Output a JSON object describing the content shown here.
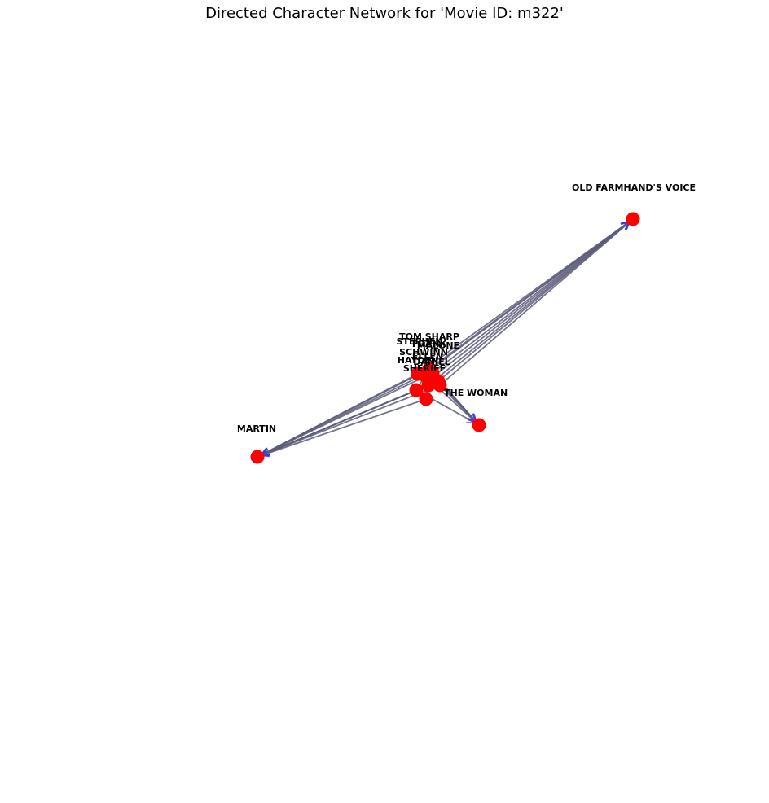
{
  "title": "Directed Character Network for 'Movie ID: m322'",
  "colors": {
    "node": "#ff0000",
    "edge": "#5a5a7a",
    "arrow": "#3a3ae0",
    "label": "#000000"
  },
  "nodes": [
    {
      "id": "old_farmhand",
      "label": "OLD FARMHAND'S VOICE"
    },
    {
      "id": "martin",
      "label": "MARTIN"
    },
    {
      "id": "the_woman",
      "label": "THE WOMAN"
    },
    {
      "id": "tom_sharp",
      "label": "TOM SHARP"
    },
    {
      "id": "stephen",
      "label": "STEPHEN"
    },
    {
      "id": "frank",
      "label": "FRANK"
    },
    {
      "id": "malone",
      "label": "MALONE"
    },
    {
      "id": "schwinn",
      "label": "SCHWINN"
    },
    {
      "id": "ellen",
      "label": "ELLEN"
    },
    {
      "id": "hayden",
      "label": "HAYDEN"
    },
    {
      "id": "daniel",
      "label": "DANIEL"
    },
    {
      "id": "sheriff",
      "label": "SHERIFF"
    }
  ],
  "edges": [
    {
      "source": "tom_sharp",
      "target": "old_farmhand"
    },
    {
      "source": "stephen",
      "target": "old_farmhand"
    },
    {
      "source": "frank",
      "target": "old_farmhand"
    },
    {
      "source": "schwinn",
      "target": "old_farmhand"
    },
    {
      "source": "ellen",
      "target": "old_farmhand"
    },
    {
      "source": "hayden",
      "target": "old_farmhand"
    },
    {
      "source": "daniel",
      "target": "old_farmhand"
    },
    {
      "source": "malone",
      "target": "old_farmhand"
    },
    {
      "source": "tom_sharp",
      "target": "martin"
    },
    {
      "source": "stephen",
      "target": "martin"
    },
    {
      "source": "frank",
      "target": "martin"
    },
    {
      "source": "schwinn",
      "target": "martin"
    },
    {
      "source": "daniel",
      "target": "martin"
    },
    {
      "source": "ellen",
      "target": "martin"
    },
    {
      "source": "hayden",
      "target": "martin"
    },
    {
      "source": "malone",
      "target": "martin"
    },
    {
      "source": "sheriff",
      "target": "martin"
    },
    {
      "source": "tom_sharp",
      "target": "the_woman"
    },
    {
      "source": "stephen",
      "target": "the_woman"
    },
    {
      "source": "daniel",
      "target": "the_woman"
    },
    {
      "source": "malone",
      "target": "the_woman"
    },
    {
      "source": "frank",
      "target": "the_woman"
    },
    {
      "source": "hayden",
      "target": "the_woman"
    },
    {
      "source": "tom_sharp",
      "target": "sheriff"
    },
    {
      "source": "stephen",
      "target": "hayden"
    },
    {
      "source": "frank",
      "target": "ellen"
    },
    {
      "source": "malone",
      "target": "daniel"
    },
    {
      "source": "schwinn",
      "target": "stephen"
    },
    {
      "source": "ellen",
      "target": "schwinn"
    },
    {
      "source": "hayden",
      "target": "frank"
    },
    {
      "source": "daniel",
      "target": "tom_sharp"
    }
  ]
}
